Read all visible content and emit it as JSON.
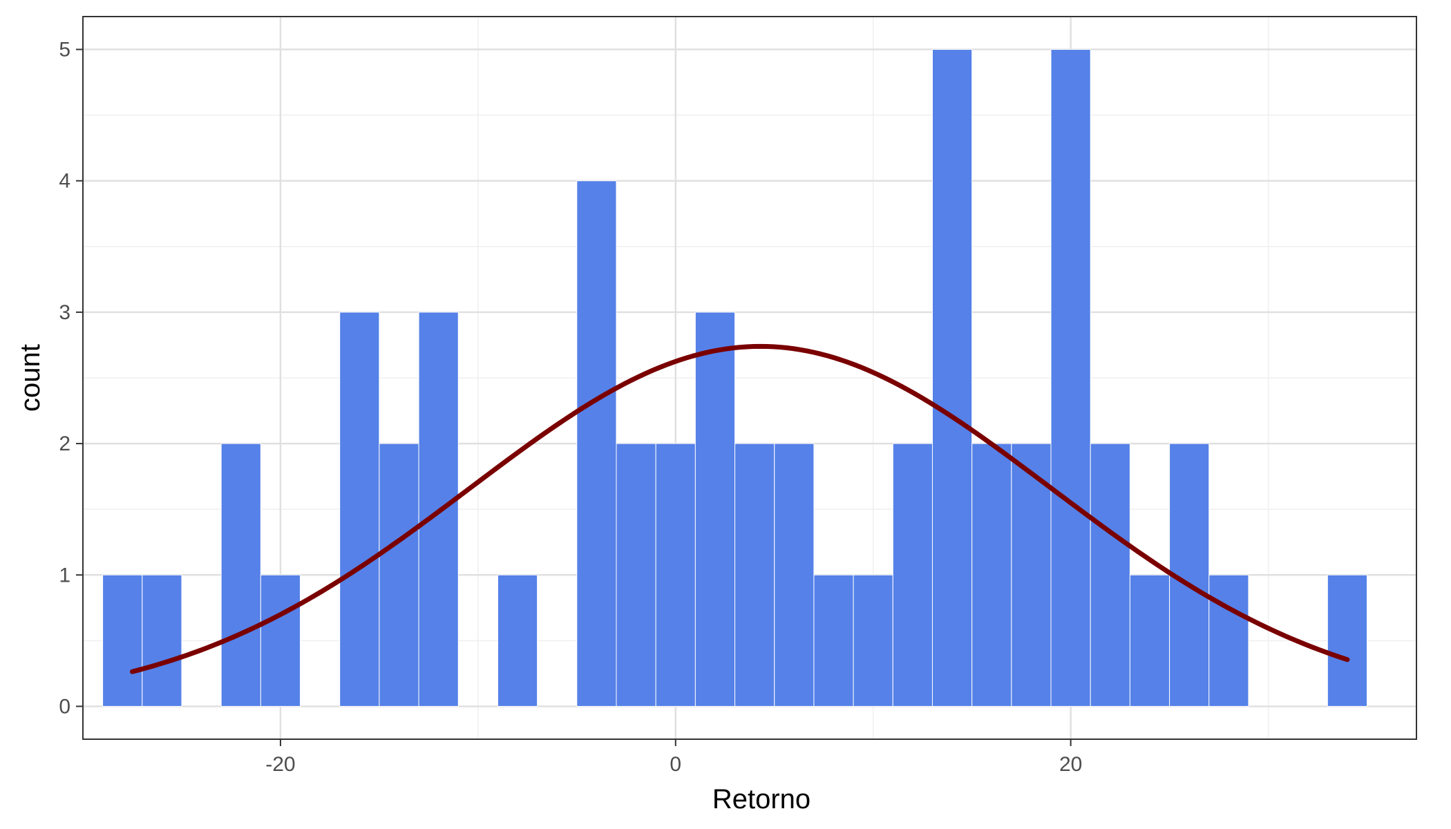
{
  "chart_data": {
    "type": "bar",
    "subtype": "histogram-with-density-curve",
    "title": "",
    "xlabel": "Retorno",
    "ylabel": "count",
    "xlim": [
      -30,
      37.5
    ],
    "ylim": [
      -0.25,
      5.25
    ],
    "x_ticks": [
      -20,
      0,
      20
    ],
    "x_tick_labels": [
      "-20",
      "0",
      "20"
    ],
    "y_ticks": [
      0,
      1,
      2,
      3,
      4,
      5
    ],
    "y_tick_labels": [
      "0",
      "1",
      "2",
      "3",
      "4",
      "5"
    ],
    "grid": true,
    "legend": "none",
    "colors": {
      "bar_fill": "#5581E8",
      "bar_outline": "#ffffff",
      "curve": "#7A0000",
      "panel_border": "#333333",
      "grid_major": "#e0e0e0",
      "grid_minor": "#efefef"
    },
    "bins": [
      {
        "x_start": -29.0,
        "x_end": -27.0,
        "count": 1
      },
      {
        "x_start": -27.0,
        "x_end": -25.0,
        "count": 1
      },
      {
        "x_start": -25.0,
        "x_end": -23.0,
        "count": 0
      },
      {
        "x_start": -23.0,
        "x_end": -21.0,
        "count": 2
      },
      {
        "x_start": -21.0,
        "x_end": -19.0,
        "count": 1
      },
      {
        "x_start": -19.0,
        "x_end": -17.0,
        "count": 0
      },
      {
        "x_start": -17.0,
        "x_end": -15.0,
        "count": 3
      },
      {
        "x_start": -15.0,
        "x_end": -13.0,
        "count": 2
      },
      {
        "x_start": -13.0,
        "x_end": -11.0,
        "count": 3
      },
      {
        "x_start": -11.0,
        "x_end": -9.0,
        "count": 0
      },
      {
        "x_start": -9.0,
        "x_end": -7.0,
        "count": 1
      },
      {
        "x_start": -7.0,
        "x_end": -5.0,
        "count": 0
      },
      {
        "x_start": -5.0,
        "x_end": -3.0,
        "count": 4
      },
      {
        "x_start": -3.0,
        "x_end": -1.0,
        "count": 2
      },
      {
        "x_start": -1.0,
        "x_end": 1.0,
        "count": 2
      },
      {
        "x_start": 1.0,
        "x_end": 3.0,
        "count": 3
      },
      {
        "x_start": 3.0,
        "x_end": 5.0,
        "count": 2
      },
      {
        "x_start": 5.0,
        "x_end": 7.0,
        "count": 2
      },
      {
        "x_start": 7.0,
        "x_end": 9.0,
        "count": 1
      },
      {
        "x_start": 9.0,
        "x_end": 11.0,
        "count": 1
      },
      {
        "x_start": 11.0,
        "x_end": 13.0,
        "count": 2
      },
      {
        "x_start": 13.0,
        "x_end": 15.0,
        "count": 5
      },
      {
        "x_start": 15.0,
        "x_end": 17.0,
        "count": 2
      },
      {
        "x_start": 17.0,
        "x_end": 19.0,
        "count": 2
      },
      {
        "x_start": 19.0,
        "x_end": 21.0,
        "count": 5
      },
      {
        "x_start": 21.0,
        "x_end": 23.0,
        "count": 2
      },
      {
        "x_start": 23.0,
        "x_end": 25.0,
        "count": 1
      },
      {
        "x_start": 25.0,
        "x_end": 27.0,
        "count": 2
      },
      {
        "x_start": 27.0,
        "x_end": 29.0,
        "count": 1
      },
      {
        "x_start": 29.0,
        "x_end": 31.0,
        "count": 0
      },
      {
        "x_start": 31.0,
        "x_end": 33.0,
        "count": 0
      },
      {
        "x_start": 33.0,
        "x_end": 35.0,
        "count": 1
      }
    ],
    "density_curve": {
      "type": "normal",
      "mean": 4.3,
      "sd": 14.7,
      "peak_count": 2.74,
      "x_range": [
        -27.5,
        34.0
      ]
    }
  }
}
